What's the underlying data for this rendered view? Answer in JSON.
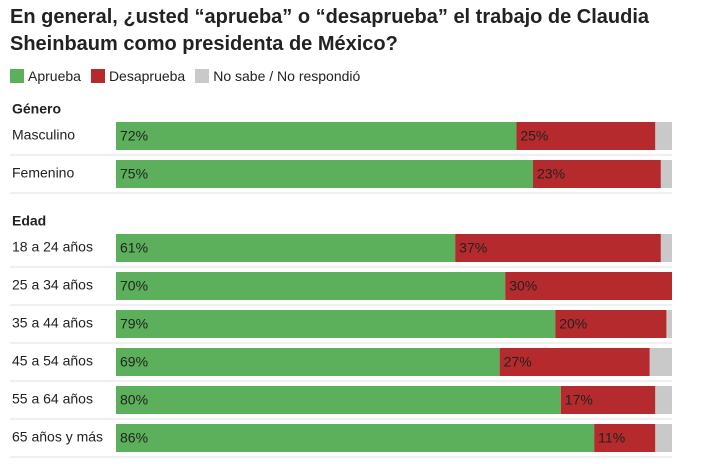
{
  "title": "En general, ¿usted “aprueba” o “desaprueba” el trabajo de Claudia Sheinbaum como presidenta de México?",
  "legend": [
    {
      "name": "Aprueba",
      "color": "#5cb05c"
    },
    {
      "name": "Desaprueba",
      "color": "#b52a2c"
    },
    {
      "name": "No sabe / No respondió",
      "color": "#c9c9c9"
    }
  ],
  "chart_data": [
    {
      "type": "bar",
      "title": "Género",
      "categories": [
        "Masculino",
        "Femenino"
      ],
      "xlim": [
        0,
        100
      ],
      "series": [
        {
          "values": [
            72,
            75
          ],
          "value_labels": [
            "72%",
            "75%"
          ]
        },
        {
          "values": [
            25,
            23
          ],
          "value_labels": [
            "25%",
            "23%"
          ]
        },
        {
          "values": [
            3,
            2
          ]
        }
      ]
    },
    {
      "type": "bar",
      "title": "Edad",
      "categories": [
        "18 a 24 años",
        "25 a 34 años",
        "35 a 44 años",
        "45 a 54 años",
        "55 a 64 años",
        "65 años y más"
      ],
      "xlim": [
        0,
        100
      ],
      "series": [
        {
          "values": [
            61,
            70,
            79,
            69,
            80,
            86
          ],
          "value_labels": [
            "61%",
            "70%",
            "79%",
            "69%",
            "80%",
            "86%"
          ]
        },
        {
          "values": [
            37,
            30,
            20,
            27,
            17,
            11
          ],
          "value_labels": [
            "37%",
            "30%",
            "20%",
            "27%",
            "17%",
            "11%"
          ]
        },
        {
          "values": [
            2,
            0,
            1,
            4,
            3,
            3
          ]
        }
      ]
    }
  ]
}
